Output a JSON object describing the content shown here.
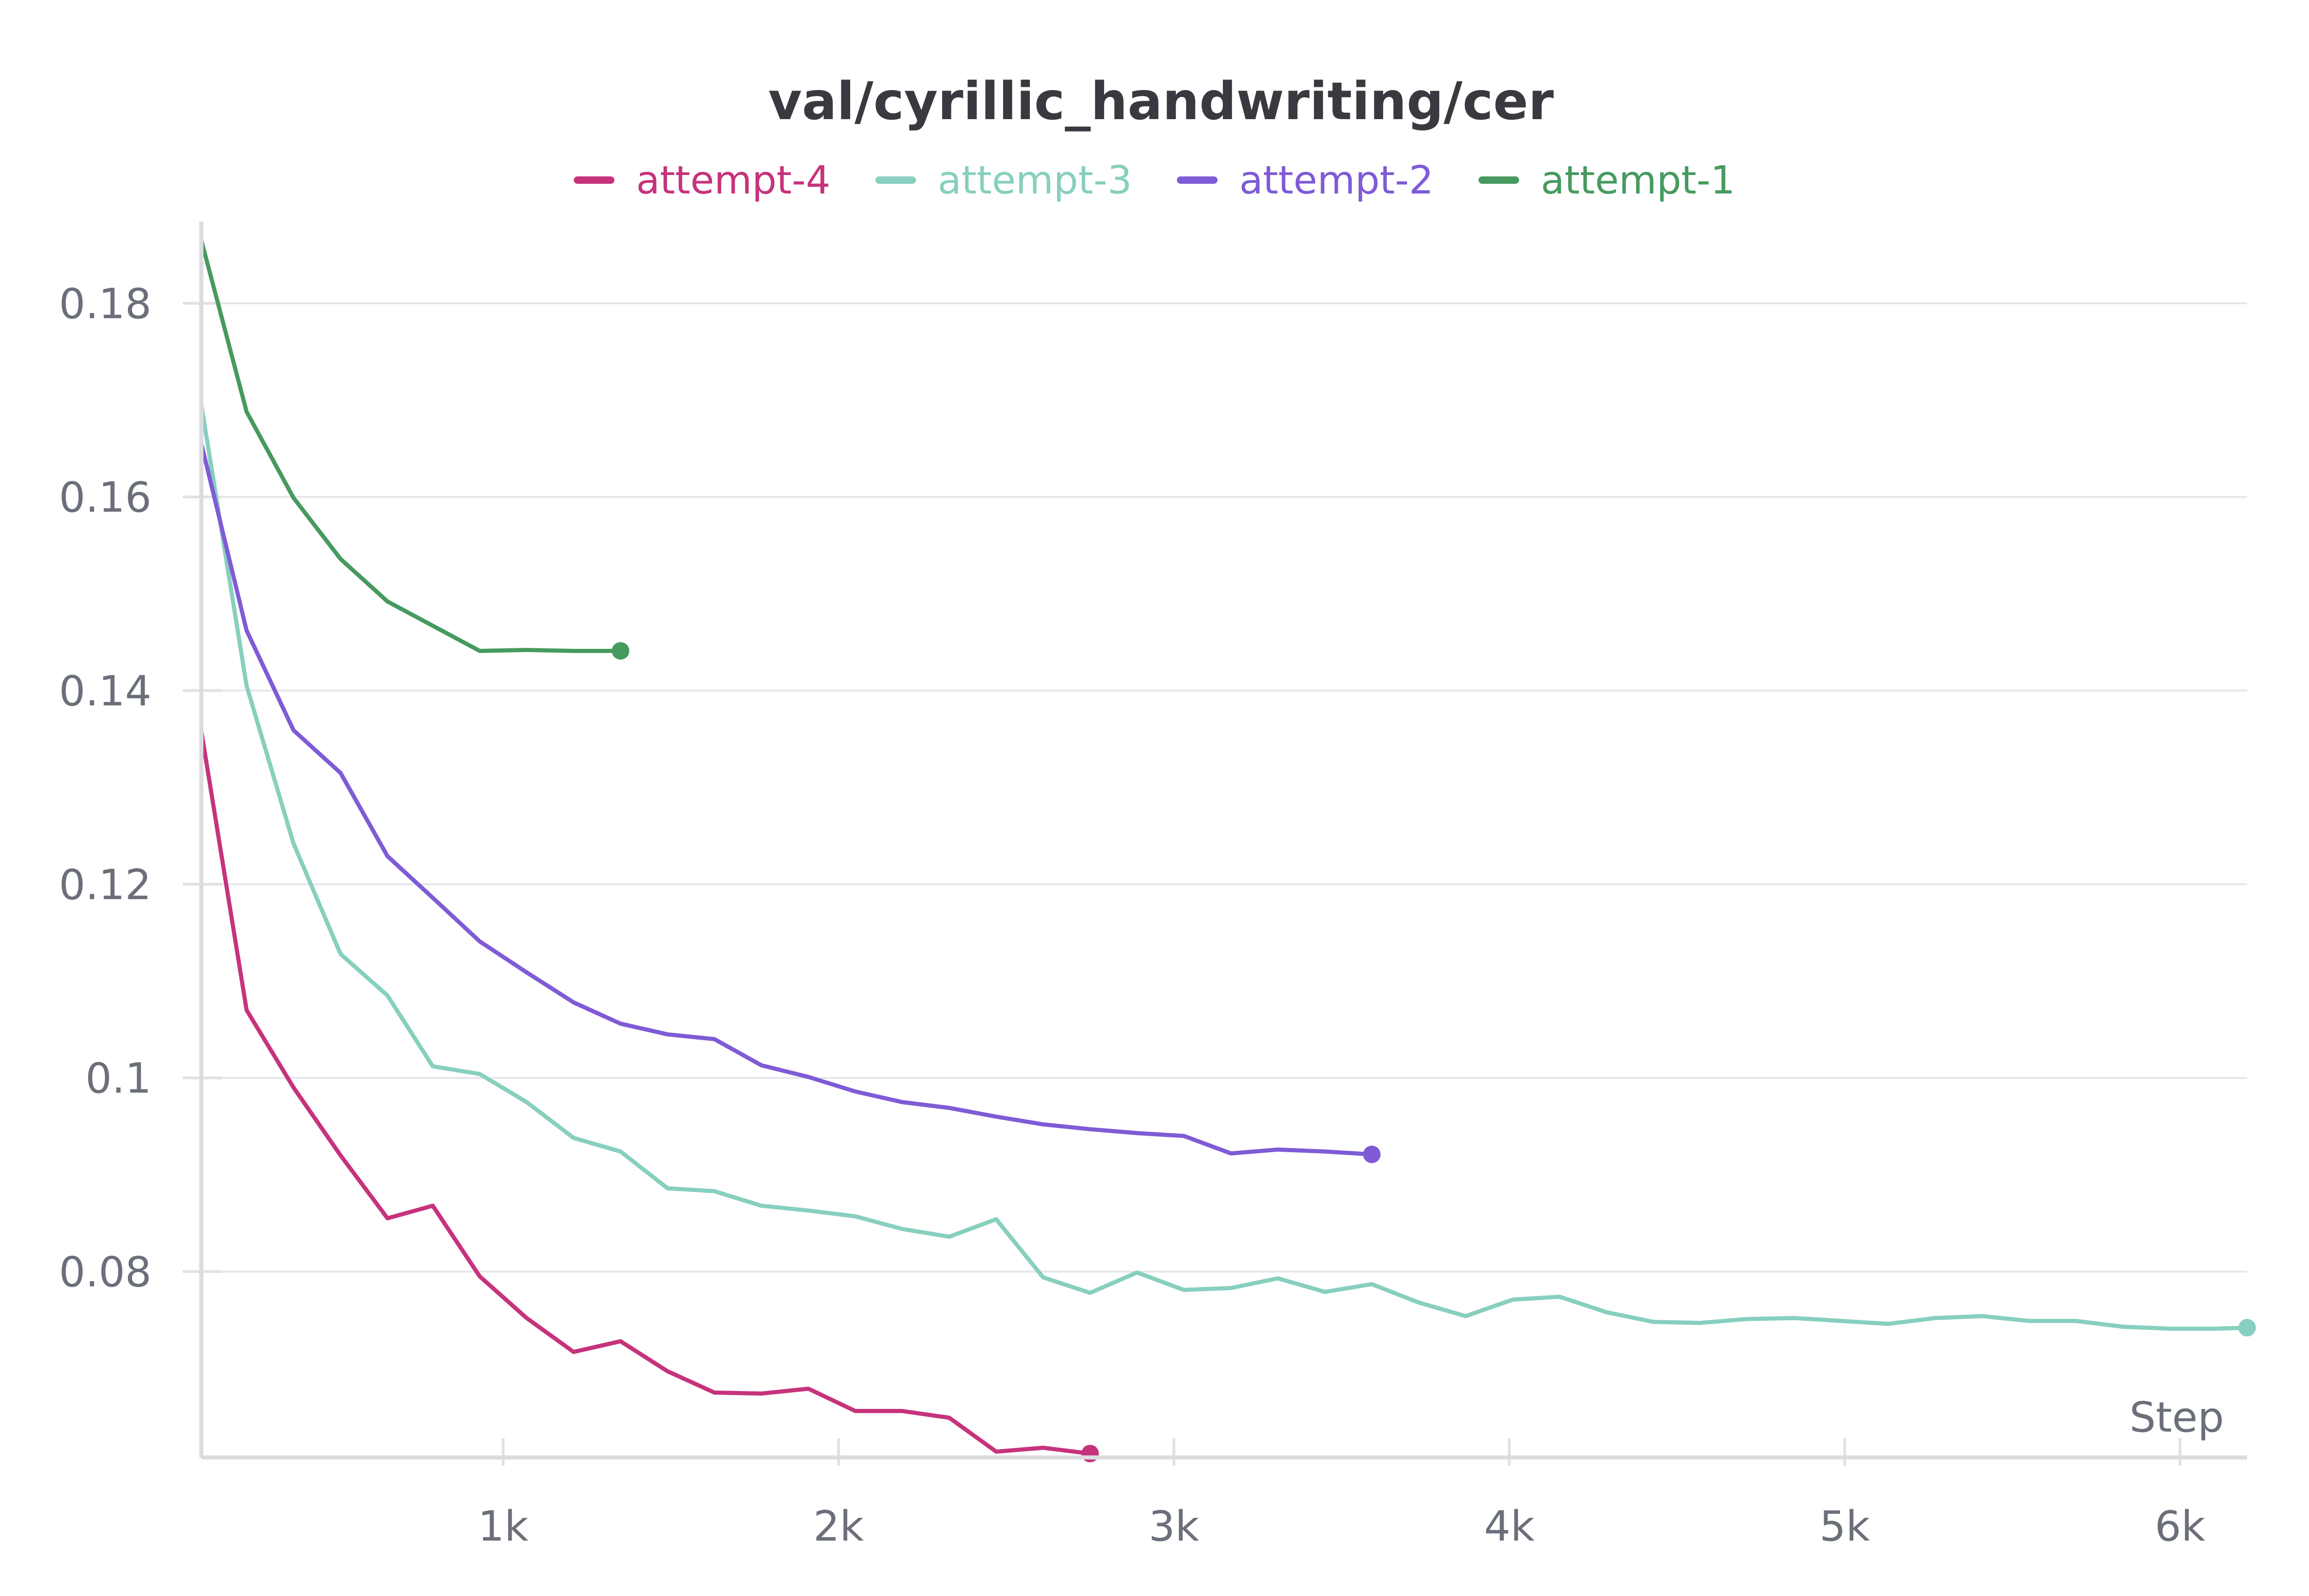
{
  "chart_data": {
    "type": "line",
    "title": "val/cyrillic_handwriting/cer",
    "xlabel": "Step",
    "ylabel": "",
    "xlim": [
      100,
      6200
    ],
    "ylim": [
      0.0608,
      0.187
    ],
    "x_ticks": [
      1000,
      2000,
      3000,
      4000,
      5000,
      6000
    ],
    "x_tick_labels": [
      "1k",
      "2k",
      "3k",
      "4k",
      "5k",
      "6k"
    ],
    "y_ticks": [
      0.08,
      0.1,
      0.12,
      0.14,
      0.16,
      0.18
    ],
    "y_tick_labels": [
      "0.08",
      "0.1",
      "0.12",
      "0.14",
      "0.16",
      "0.18"
    ],
    "grid": true,
    "legend_position": "top-center",
    "series": [
      {
        "name": "attempt-4",
        "color": "#c6337c",
        "x": [
          100,
          235,
          375,
          515,
          655,
          790,
          930,
          1070,
          1210,
          1350,
          1490,
          1630,
          1770,
          1910,
          2050,
          2190,
          2330,
          2470,
          2610,
          2750
        ],
        "y": [
          0.1358,
          0.107,
          0.099,
          0.092,
          0.0855,
          0.0868,
          0.0795,
          0.0752,
          0.0717,
          0.0728,
          0.0697,
          0.0675,
          0.0674,
          0.0679,
          0.0656,
          0.0656,
          0.0649,
          0.0614,
          0.0618,
          0.0612
        ]
      },
      {
        "name": "attempt-3",
        "color": "#87cfbe",
        "x": [
          100,
          235,
          375,
          515,
          655,
          790,
          930,
          1070,
          1210,
          1350,
          1490,
          1630,
          1770,
          1910,
          2050,
          2190,
          2330,
          2470,
          2610,
          2750,
          2890,
          3030,
          3170,
          3310,
          3450,
          3590,
          3730,
          3870,
          4010,
          4150,
          4290,
          4430,
          4570,
          4710,
          4850,
          4990,
          5130,
          5270,
          5410,
          5550,
          5690,
          5830,
          5970,
          6110,
          6200
        ],
        "y": [
          0.1695,
          0.1405,
          0.1242,
          0.1128,
          0.1085,
          0.1012,
          0.1004,
          0.0975,
          0.0938,
          0.0924,
          0.0886,
          0.0883,
          0.0868,
          0.0863,
          0.0857,
          0.0844,
          0.0836,
          0.0854,
          0.0794,
          0.0778,
          0.0799,
          0.0781,
          0.0783,
          0.0793,
          0.0779,
          0.0787,
          0.0768,
          0.0754,
          0.0771,
          0.0774,
          0.0758,
          0.0748,
          0.0747,
          0.0751,
          0.0752,
          0.0749,
          0.0746,
          0.0752,
          0.0754,
          0.0749,
          0.0749,
          0.0743,
          0.0741,
          0.0741,
          0.0742
        ]
      },
      {
        "name": "attempt-2",
        "color": "#7f5bd6",
        "x": [
          100,
          235,
          375,
          515,
          655,
          790,
          930,
          1070,
          1210,
          1350,
          1490,
          1630,
          1770,
          1910,
          2050,
          2190,
          2330,
          2470,
          2610,
          2750,
          2890,
          3030,
          3170,
          3310,
          3450,
          3590
        ],
        "y": [
          0.1655,
          0.1462,
          0.1359,
          0.1315,
          0.1229,
          0.1186,
          0.1141,
          0.1109,
          0.1078,
          0.1056,
          0.1045,
          0.104,
          0.1013,
          0.1001,
          0.0986,
          0.0975,
          0.0969,
          0.096,
          0.0952,
          0.0947,
          0.0943,
          0.094,
          0.0922,
          0.0926,
          0.0924,
          0.0921
        ]
      },
      {
        "name": "attempt-1",
        "color": "#479a5f",
        "x": [
          100,
          235,
          375,
          515,
          655,
          790,
          930,
          1070,
          1210,
          1350
        ],
        "y": [
          0.1865,
          0.1688,
          0.1599,
          0.1536,
          0.1492,
          0.1467,
          0.1441,
          0.1442,
          0.1441,
          0.1441
        ]
      }
    ]
  }
}
